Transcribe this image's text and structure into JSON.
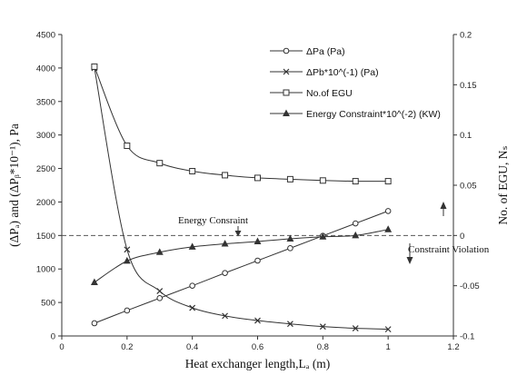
{
  "chart_data": {
    "type": "line",
    "x": [
      0.1,
      0.2,
      0.3,
      0.4,
      0.5,
      0.6,
      0.7,
      0.8,
      0.9,
      1.0
    ],
    "xlabel": "Heat exchanger length,Lₐ (m)",
    "xlim": [
      0,
      1.2
    ],
    "xticks": [
      "0",
      "0.2",
      "0.4",
      "0.6",
      "0.8",
      "1",
      "1.2"
    ],
    "ylabel": "(ΔPₐ) and (ΔPᵦ*10⁻¹), Pa",
    "ylim": [
      0,
      4500
    ],
    "yticks": [
      "0",
      "500",
      "1000",
      "1500",
      "2000",
      "2500",
      "3000",
      "3500",
      "4000",
      "4500"
    ],
    "y2label": "No. of EGU, Nₛ",
    "y2lim": [
      -0.1,
      0.2
    ],
    "y2ticks": [
      "-0.1",
      "-0.05",
      "0",
      "0.05",
      "0.1",
      "0.15",
      "0.2"
    ],
    "grid": false,
    "legend_position": "top-right",
    "series": [
      {
        "name": "ΔPa  (Pa)",
        "marker": "circle",
        "axis": "left",
        "values": [
          190,
          380,
          565,
          750,
          940,
          1125,
          1310,
          1495,
          1680,
          1865
        ]
      },
      {
        "name": "ΔPb*10^(-1) (Pa)",
        "marker": "x",
        "axis": "left",
        "values": [
          4000,
          1290,
          670,
          420,
          300,
          230,
          180,
          140,
          115,
          100
        ]
      },
      {
        "name": "No.of EGU",
        "marker": "square",
        "axis": "right",
        "values": [
          0.168,
          0.0893,
          0.072,
          0.064,
          0.06,
          0.0573,
          0.056,
          0.0547,
          0.054,
          0.054
        ]
      },
      {
        "name": "Energy Constraint*10^(-2) (KW)",
        "marker": "triangle",
        "axis": "left",
        "values": [
          800,
          1120,
          1250,
          1330,
          1375,
          1410,
          1450,
          1480,
          1500,
          1590
        ]
      }
    ],
    "reference_line": {
      "axis": "right",
      "value": 0,
      "style": "dashed"
    },
    "annotations": {
      "energy": "Energy Consraint",
      "violation": "Constraint Violation"
    }
  }
}
